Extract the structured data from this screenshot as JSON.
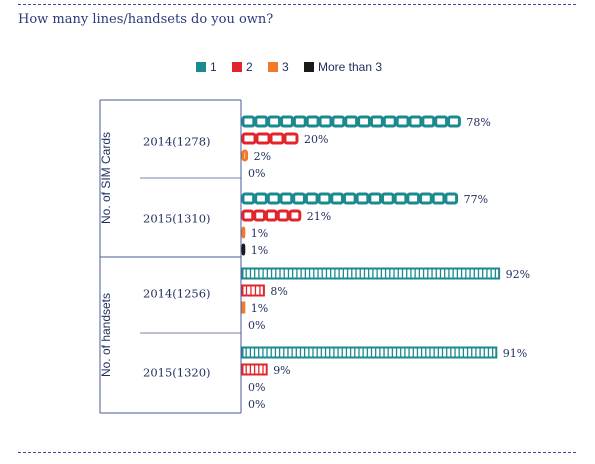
{
  "page": {
    "title": "How many lines/handsets do you own?"
  },
  "colors": {
    "s1": "#1b8a8f",
    "s2": "#e0262b",
    "s3": "#f07a2a",
    "s4": "#1a1a1a",
    "text": "#1f2d5c",
    "axis": "#4a5a9a"
  },
  "chart_data": {
    "type": "bar",
    "orientation": "horizontal",
    "title": "How many lines/handsets do you own?",
    "unit": "%",
    "legend_position": "top",
    "xlim": [
      0,
      100
    ],
    "series": [
      {
        "name": "1",
        "color": "#1b8a8f"
      },
      {
        "name": "2",
        "color": "#e0262b"
      },
      {
        "name": "3",
        "color": "#f07a2a"
      },
      {
        "name": "More than 3",
        "color": "#1a1a1a"
      }
    ],
    "groups": [
      {
        "label": "No. of SIM Cards",
        "icon": "sim-card",
        "categories": [
          {
            "label": "2014(1278)",
            "values": [
              78,
              20,
              2,
              0
            ],
            "value_labels": [
              "78%",
              "20%",
              "2%",
              "0%"
            ]
          },
          {
            "label": "2015(1310)",
            "values": [
              77,
              21,
              1,
              1
            ],
            "value_labels": [
              "77%",
              "21%",
              "1%",
              "1%"
            ]
          }
        ]
      },
      {
        "label": "No. of handsets",
        "icon": "handset",
        "categories": [
          {
            "label": "2014(1256)",
            "values": [
              92,
              8,
              1,
              0
            ],
            "value_labels": [
              "92%",
              "8%",
              "1%",
              "0%"
            ]
          },
          {
            "label": "2015(1320)",
            "values": [
              91,
              9,
              0,
              0
            ],
            "value_labels": [
              "91%",
              "9%",
              "0%",
              "0%"
            ]
          }
        ]
      }
    ]
  }
}
